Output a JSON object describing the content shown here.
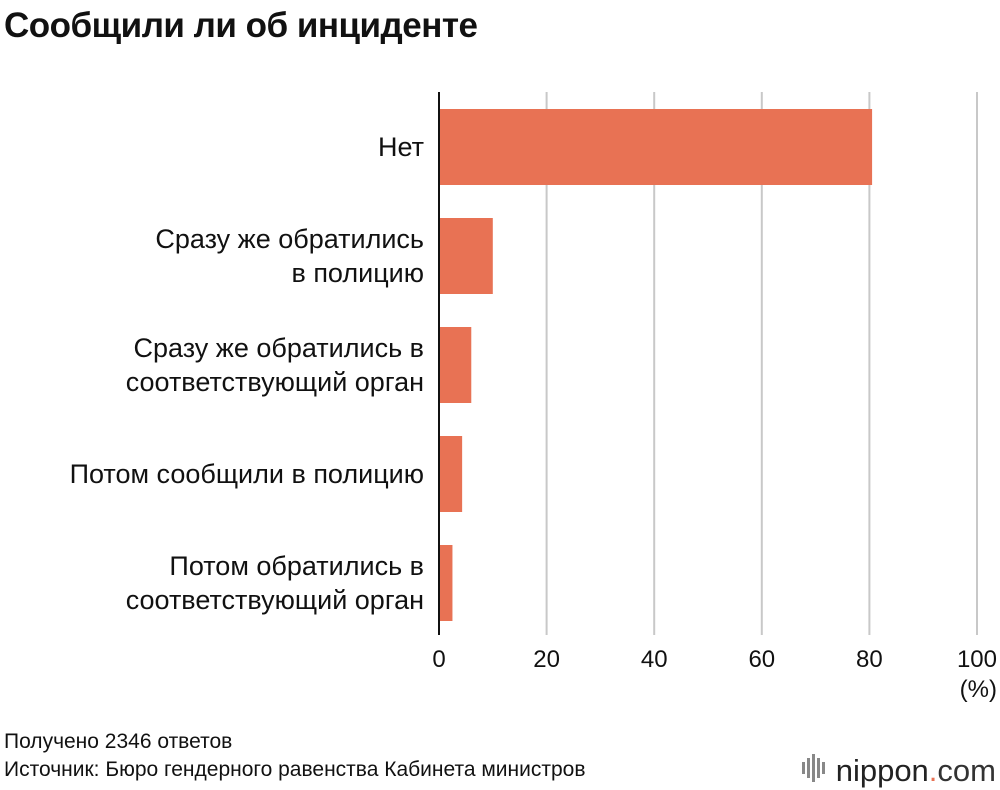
{
  "title": "Сообщили ли об инциденте",
  "chart_data": {
    "type": "bar",
    "orientation": "horizontal",
    "categories": [
      [
        "Нет"
      ],
      [
        "Сразу же обратились",
        "в полицию"
      ],
      [
        "Сразу же обратились в",
        "соответствующий орган"
      ],
      [
        "Потом сообщили в полицию"
      ],
      [
        "Потом обратились в",
        "соответствующий орган"
      ]
    ],
    "values": [
      80.5,
      10,
      6,
      4.3,
      2.5
    ],
    "xlim": [
      0,
      100
    ],
    "ticks": [
      "0",
      "20",
      "40",
      "60",
      "80",
      "100"
    ],
    "tick_values": [
      0,
      20,
      40,
      60,
      80,
      100
    ],
    "unit": "(%)",
    "grid": true,
    "bar_color": "#e87254"
  },
  "footer": {
    "responses": "Получено 2346 ответов",
    "source": "Источник: Бюро гендерного равенства Кабинета министров"
  },
  "logo": {
    "text": "nippon",
    "dot": ".",
    "suffix": "com"
  }
}
